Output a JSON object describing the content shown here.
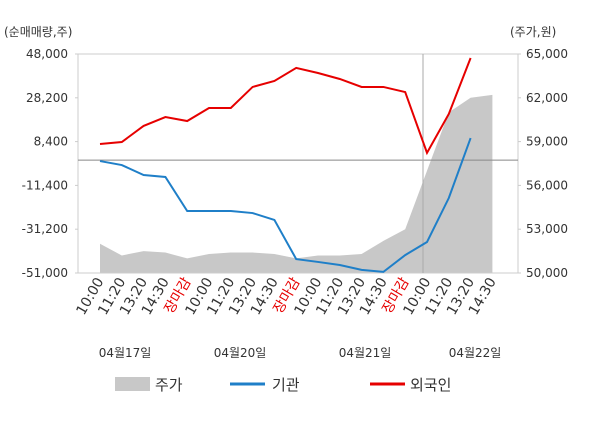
{
  "chart_data": {
    "type": "line",
    "ylabel": "(순매매량,주)",
    "y2label": "(주가,원)",
    "categories": [
      "10:00",
      "11:20",
      "13:20",
      "14:30",
      "장마감",
      "10:00",
      "11:20",
      "13:20",
      "14:30",
      "장마감",
      "10:00",
      "11:20",
      "13:20",
      "14:30",
      "장마감",
      "10:00",
      "11:20",
      "13:20",
      "14:30"
    ],
    "category_colors": [
      "#333",
      "#333",
      "#333",
      "#333",
      "#e60000",
      "#333",
      "#333",
      "#333",
      "#333",
      "#e60000",
      "#333",
      "#333",
      "#333",
      "#333",
      "#e60000",
      "#333",
      "#333",
      "#333",
      "#333"
    ],
    "dates": [
      "04월17일",
      "04월20일",
      "04월21일",
      "04월22일"
    ],
    "ylim": [
      -51000,
      48000
    ],
    "yticks": [
      {
        "value": 48000,
        "label": "48,000"
      },
      {
        "value": 28200,
        "label": "28,200"
      },
      {
        "value": 8400,
        "label": "8,400"
      },
      {
        "value": -11400,
        "label": "-11,400"
      },
      {
        "value": -31200,
        "label": "-31,200"
      },
      {
        "value": -51000,
        "label": "-51,000"
      }
    ],
    "y2lim": [
      50000,
      65000
    ],
    "y2ticks": [
      {
        "value": 65000,
        "label": "65,000"
      },
      {
        "value": 62000,
        "label": "62,000"
      },
      {
        "value": 59000,
        "label": "59,000"
      },
      {
        "value": 56000,
        "label": "56,000"
      },
      {
        "value": 53000,
        "label": "53,000"
      },
      {
        "value": 50000,
        "label": "50,000"
      }
    ],
    "series": [
      {
        "name": "주가",
        "color": "#c8c8c8",
        "kind": "area",
        "axis": "y2",
        "values": [
          52000,
          51200,
          51500,
          51400,
          51000,
          51300,
          51400,
          51400,
          51300,
          51000,
          51200,
          51200,
          51300,
          52200,
          53000,
          57000,
          61000,
          62000,
          62200
        ]
      },
      {
        "name": "기관",
        "color": "#1f7fc8",
        "kind": "line",
        "values": [
          -400,
          -2200,
          -6700,
          -7600,
          -23000,
          -23000,
          -23000,
          -23900,
          -27000,
          -44700,
          -46000,
          -47400,
          -49600,
          -50500,
          -42900,
          -37000,
          -17100,
          10000,
          null
        ]
      },
      {
        "name": "외국인",
        "color": "#e60000",
        "kind": "line",
        "values": [
          7300,
          8200,
          15500,
          19500,
          17700,
          23600,
          23600,
          33100,
          35800,
          41700,
          39400,
          36700,
          33100,
          33100,
          30800,
          3300,
          20900,
          46200,
          null
        ]
      }
    ]
  }
}
